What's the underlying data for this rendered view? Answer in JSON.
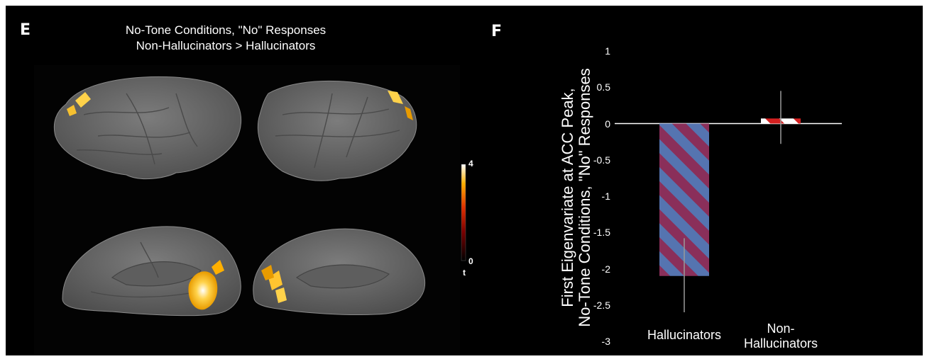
{
  "panel_e": {
    "letter": "E",
    "title_line1": "No-Tone Conditions, \"No\" Responses",
    "title_line2": "Non-Hallucinators > Hallucinators",
    "colorbar": {
      "max_label": "4",
      "min_label": "0",
      "variable": "t",
      "colors": [
        "#000000",
        "#7a0000",
        "#e03000",
        "#ffb000",
        "#ffffff"
      ]
    },
    "brain_color": "#6b6b6b"
  },
  "panel_f": {
    "letter": "F",
    "ylabel_line1": "First Eigenvariate at ACC Peak,",
    "ylabel_line2": "No-Tone Conditions, \"No\" Responses",
    "category_labels": [
      [
        "Hallucinators"
      ],
      [
        "Non-",
        "Hallucinators"
      ]
    ]
  },
  "chart_data": {
    "type": "bar",
    "categories": [
      "Hallucinators",
      "Non-Hallucinators"
    ],
    "values": [
      -2.1,
      0.07
    ],
    "error_low": [
      -2.6,
      -0.28
    ],
    "error_high": [
      -1.58,
      0.45
    ],
    "ylim": [
      -3,
      1
    ],
    "yticks": [
      1,
      0.5,
      0,
      -0.5,
      -1,
      -1.5,
      -2,
      -2.5,
      -3
    ],
    "ytick_labels": [
      "1",
      "0.5",
      "0",
      "-0.5",
      "-1",
      "-1.5",
      "-2",
      "-2.5",
      "-3"
    ],
    "bar_styles": [
      {
        "fill": "#8a2f5a",
        "stripe": "#5574b0"
      },
      {
        "fill": "#ffffff",
        "stripe": "#d42020"
      }
    ],
    "grid": false
  }
}
